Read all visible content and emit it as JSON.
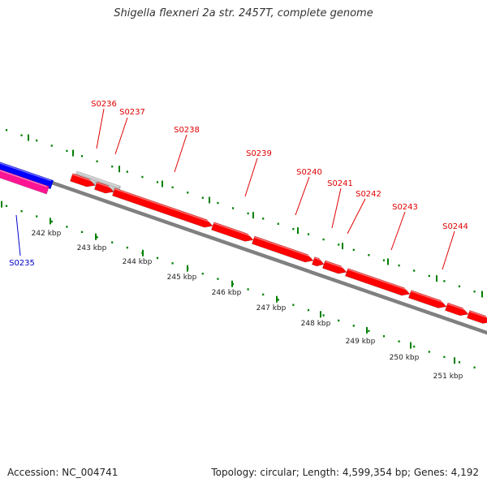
{
  "title": "Shigella flexneri 2a str. 2457T, complete genome",
  "footer": {
    "accession": "Accession: NC_004741",
    "summary": "Topology: circular; Length: 4,599,354 bp; Genes: 4,192"
  },
  "colors": {
    "forward_gene": "#ff0000",
    "reverse_gene": "#0000ff",
    "rna_gene": "#ff1493",
    "pseudo_gene": "#c0c0c0",
    "backbone": "#808080",
    "tick": "#008000",
    "forward_label": "#e00000",
    "reverse_label": "#0000cc"
  },
  "scale_labels": [
    "242 kbp",
    "243 kbp",
    "244 kbp",
    "245 kbp",
    "246 kbp",
    "247 kbp",
    "248 kbp",
    "249 kbp",
    "250 kbp",
    "251 kbp"
  ],
  "gene_labels": [
    {
      "text": "S0235",
      "strand": "reverse"
    },
    {
      "text": "S0236",
      "strand": "forward"
    },
    {
      "text": "S0237",
      "strand": "forward"
    },
    {
      "text": "S0238",
      "strand": "forward"
    },
    {
      "text": "S0239",
      "strand": "forward"
    },
    {
      "text": "S0240",
      "strand": "forward"
    },
    {
      "text": "S0241",
      "strand": "forward"
    },
    {
      "text": "S0242",
      "strand": "forward"
    },
    {
      "text": "S0243",
      "strand": "forward"
    },
    {
      "text": "S0244",
      "strand": "forward"
    }
  ]
}
